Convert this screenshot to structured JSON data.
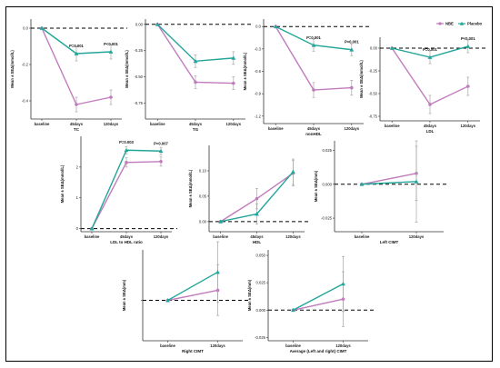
{
  "legend": {
    "entries": [
      {
        "name": "NBE",
        "color": "#c07bbd",
        "marker": "circle"
      },
      {
        "name": "Placebo",
        "color": "#21a699",
        "marker": "triangle"
      }
    ]
  },
  "colors": {
    "nbe": "#c07bbd",
    "placebo": "#21a699",
    "error_bar": "#a6a6a6"
  },
  "chart_data": [
    {
      "id": "tc",
      "type": "line",
      "xlabel": "TC",
      "ylabel": "Mean ± SEΔ(mmol/L)",
      "categories": [
        "baseline",
        "45days",
        "120days"
      ],
      "ylim": [
        -0.5,
        0.05
      ],
      "yticks": [
        0.0,
        -0.2,
        -0.4
      ],
      "ytick_labels": [
        "0.0",
        "-0.2",
        "-0.4"
      ],
      "series": [
        {
          "name": "NBE",
          "values": [
            0,
            -0.42,
            -0.38
          ],
          "errors": [
            0,
            0.04,
            0.04
          ]
        },
        {
          "name": "Placebo",
          "values": [
            0,
            -0.14,
            -0.13
          ],
          "errors": [
            0,
            0.04,
            0.04
          ]
        }
      ],
      "annotations": [
        {
          "text": "P=0.001",
          "at": "45days"
        },
        {
          "text": "P<0.001",
          "at": "120days"
        }
      ]
    },
    {
      "id": "tg",
      "type": "line",
      "xlabel": "TG",
      "ylabel": "Mean ± SEΔ(mmol/L)",
      "categories": [
        "baseline",
        "45days",
        "120days"
      ],
      "ylim": [
        -0.9,
        0.05
      ],
      "yticks": [
        0.0,
        -0.25,
        -0.5,
        -0.75
      ],
      "ytick_labels": [
        "0.00",
        "-0.25",
        "-0.50",
        "-0.75"
      ],
      "series": [
        {
          "name": "NBE",
          "values": [
            0,
            -0.55,
            -0.56
          ],
          "errors": [
            0,
            0.06,
            0.06
          ]
        },
        {
          "name": "Placebo",
          "values": [
            0,
            -0.35,
            -0.32
          ],
          "errors": [
            0,
            0.06,
            0.06
          ]
        }
      ],
      "annotations": []
    },
    {
      "id": "nonhdl",
      "type": "line",
      "xlabel": "nonHDL",
      "ylabel": "Mean ± SEΔ(mmol/L)",
      "categories": [
        "baseline",
        "45days",
        "120days"
      ],
      "ylim": [
        -1.3,
        0.1
      ],
      "yticks": [
        0.0,
        -0.3,
        -0.6,
        -0.9,
        -1.2
      ],
      "ytick_labels": [
        "0.0",
        "-0.3",
        "-0.6",
        "-0.9",
        "-1.2"
      ],
      "series": [
        {
          "name": "NBE",
          "values": [
            0,
            -0.85,
            -0.82
          ],
          "errors": [
            0,
            0.1,
            0.1
          ]
        },
        {
          "name": "Placebo",
          "values": [
            0,
            -0.25,
            -0.31
          ],
          "errors": [
            0,
            0.08,
            0.08
          ]
        }
      ],
      "annotations": [
        {
          "text": "P=0.001",
          "at": "45days"
        },
        {
          "text": "P=0.001",
          "at": "120days"
        }
      ]
    },
    {
      "id": "ldl",
      "type": "line",
      "xlabel": "LDL",
      "ylabel": "Mean ± SEΔ(mmol/L)",
      "categories": [
        "baseline",
        "45days",
        "120days"
      ],
      "ylim": [
        -0.8,
        0.12
      ],
      "yticks": [
        0.0,
        -0.25,
        -0.5,
        -0.75
      ],
      "ytick_labels": [
        "0.00",
        "-0.25",
        "-0.50",
        "-0.75"
      ],
      "series": [
        {
          "name": "NBE",
          "values": [
            0,
            -0.62,
            -0.42
          ],
          "errors": [
            0,
            0.1,
            0.1
          ]
        },
        {
          "name": "Placebo",
          "values": [
            0,
            -0.1,
            0.02
          ],
          "errors": [
            0,
            0.07,
            0.07
          ]
        }
      ],
      "annotations": [
        {
          "text": "P=0.001",
          "at": "45days"
        },
        {
          "text": "P<0.001",
          "at": "120days"
        }
      ]
    },
    {
      "id": "ldlhdl",
      "type": "line",
      "xlabel": "LDL to HDL ratio",
      "ylabel": "Mean ± SEΔ(mmol/L)",
      "categories": [
        "baseline",
        "45days",
        "120days"
      ],
      "ylim": [
        -0.1,
        3.0
      ],
      "yticks": [
        0,
        1,
        2
      ],
      "ytick_labels": [
        "0",
        "1",
        "2"
      ],
      "series": [
        {
          "name": "NBE",
          "values": [
            0,
            2.15,
            2.18
          ],
          "errors": [
            0,
            0.15,
            0.15
          ]
        },
        {
          "name": "Placebo",
          "values": [
            0,
            2.55,
            2.52
          ],
          "errors": [
            0,
            0.12,
            0.12
          ]
        }
      ],
      "annotations": [
        {
          "text": "P=0.003",
          "at": "45days"
        },
        {
          "text": "P=0.007",
          "at": "120days"
        }
      ]
    },
    {
      "id": "hdl",
      "type": "line",
      "xlabel": "HDL",
      "ylabel": "Mean ± SEΔ(mmol/L)",
      "categories": [
        "baseline",
        "45days",
        "120days"
      ],
      "ylim": [
        -0.02,
        0.15
      ],
      "yticks": [
        0.0,
        0.05,
        0.1
      ],
      "ytick_labels": [
        "0.00",
        "0.05",
        "0.10"
      ],
      "series": [
        {
          "name": "NBE",
          "values": [
            0,
            0.045,
            0.095
          ],
          "errors": [
            0,
            0.02,
            0.025
          ]
        },
        {
          "name": "Placebo",
          "values": [
            0,
            0.015,
            0.098
          ],
          "errors": [
            0,
            0.02,
            0.025
          ]
        }
      ],
      "annotations": []
    },
    {
      "id": "lcimt",
      "type": "line",
      "xlabel": "Left CIMT",
      "ylabel": "Mean ± SEΔ(mm)",
      "categories": [
        "baseline",
        "120days"
      ],
      "ylim": [
        -0.035,
        0.032
      ],
      "yticks": [
        0.025,
        0.0,
        -0.025
      ],
      "ytick_labels": [
        "0.025",
        "0.000",
        "-0.025"
      ],
      "series": [
        {
          "name": "NBE",
          "values": [
            0,
            0.008
          ],
          "errors": [
            0,
            0.02
          ]
        },
        {
          "name": "Placebo",
          "values": [
            0,
            0.002
          ],
          "errors": [
            0,
            0.03
          ]
        }
      ],
      "annotations": []
    },
    {
      "id": "rcimt",
      "type": "line",
      "xlabel": "Right CIMT",
      "ylabel": "Mean ± SEΔ(mm)",
      "categories": [
        "baseline",
        "120days"
      ],
      "ylim": [
        -0.04,
        0.05
      ],
      "yticks": [
        0.0
      ],
      "ytick_labels": [
        ""
      ],
      "series": [
        {
          "name": "NBE",
          "values": [
            0,
            0.01
          ],
          "errors": [
            0,
            0.025
          ]
        },
        {
          "name": "Placebo",
          "values": [
            0,
            0.028
          ],
          "errors": [
            0,
            0.03
          ]
        }
      ],
      "annotations": []
    },
    {
      "id": "acimt",
      "type": "line",
      "xlabel": "Average (Left and right) CIMT",
      "ylabel": "Mean ± SEΔ(mm)",
      "categories": [
        "baseline",
        "120days"
      ],
      "ylim": [
        -0.028,
        0.055
      ],
      "yticks": [
        0.05,
        0.025,
        0.0,
        -0.025
      ],
      "ytick_labels": [
        "0.050",
        "0.025",
        "0.000",
        "-0.025"
      ],
      "series": [
        {
          "name": "NBE",
          "values": [
            0,
            0.01
          ],
          "errors": [
            0,
            0.025
          ]
        },
        {
          "name": "Placebo",
          "values": [
            0,
            0.024
          ],
          "errors": [
            0,
            0.025
          ]
        }
      ],
      "annotations": []
    }
  ]
}
